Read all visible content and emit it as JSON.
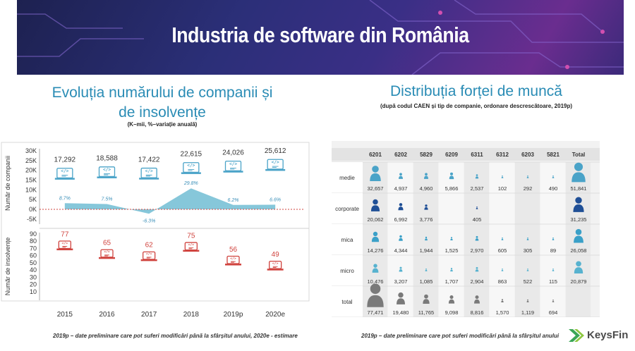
{
  "header": {
    "title": "Industria de software din România"
  },
  "left_panel": {
    "title_line1": "Evoluția numărului de companii și",
    "title_line2": "de insolvențe",
    "subtitle": "(K–mii, %–variație anuală)",
    "footnote": "2019p – date preliminare care pot suferi modificări până la sfârșitul anului, 2020e - estimare"
  },
  "right_panel": {
    "title": "Distribuția forței de muncă",
    "subtitle": "(după codul CAEN și tip de companie, ordonare descrescătoare, 2019p)",
    "footnote": "2019p – date preliminare care pot suferi modificări până la sfârșitul anului"
  },
  "logo": {
    "text": "KeysFin"
  },
  "colors": {
    "teal": "#4aa3c8",
    "area": "#7fc4d8",
    "red": "#d0443f",
    "grey": "#777777"
  },
  "chart_data": [
    {
      "type": "area",
      "categories": [
        "2015",
        "2016",
        "2017",
        "2018",
        "2019p",
        "2020e"
      ],
      "series": [
        {
          "values": [
            17292,
            18588,
            17422,
            22615,
            24026,
            25612
          ],
          "value_labels": [
            "17,292",
            "18,588",
            "17,422",
            "22,615",
            "24,026",
            "25,612"
          ]
        },
        {
          "values": [
            8.7,
            7.5,
            -6.3,
            29.8,
            6.2,
            6.6
          ],
          "value_labels": [
            "8.7%",
            "7.5%",
            "-6.3%",
            "29.8%",
            "6.2%",
            "6.6%"
          ]
        }
      ],
      "ylabel": "Număr de companii",
      "yticks": [
        "30K",
        "25K",
        "20K",
        "15K",
        "10K",
        "5K",
        "0K",
        "-5K"
      ],
      "ylim": [
        -5000,
        30000
      ],
      "icon": "laptop-code-icon"
    },
    {
      "type": "bar",
      "categories": [
        "2015",
        "2016",
        "2017",
        "2018",
        "2019p",
        "2020e"
      ],
      "values": [
        77,
        65,
        62,
        75,
        56,
        49
      ],
      "ylabel": "Număr de insolvențe",
      "yticks": [
        "90",
        "80",
        "70",
        "60",
        "50",
        "40",
        "30",
        "20",
        "10"
      ],
      "ylim": [
        0,
        90
      ],
      "icon": "laptop-code-icon"
    },
    {
      "type": "table",
      "columns": [
        "",
        "6201",
        "6202",
        "5829",
        "6209",
        "6311",
        "6312",
        "6203",
        "5821",
        "Total"
      ],
      "rows": [
        {
          "label": "medie",
          "color": "#4aa3c8",
          "values": [
            32657,
            4937,
            4960,
            5866,
            2537,
            102,
            292,
            490,
            51841
          ],
          "labels": [
            "32,657",
            "4,937",
            "4,960",
            "5,866",
            "2,537",
            "102",
            "292",
            "490",
            "51,841"
          ]
        },
        {
          "label": "corporate",
          "color": "#1f4f96",
          "values": [
            20062,
            6992,
            3776,
            null,
            405,
            null,
            null,
            null,
            31235
          ],
          "labels": [
            "20,062",
            "6,992",
            "3,776",
            "",
            "405",
            "",
            "",
            "",
            "31,235"
          ]
        },
        {
          "label": "mica",
          "color": "#3aa0c8",
          "values": [
            14276,
            4344,
            1944,
            1525,
            2970,
            605,
            305,
            89,
            26058
          ],
          "labels": [
            "14,276",
            "4,344",
            "1,944",
            "1,525",
            "2,970",
            "605",
            "305",
            "89",
            "26,058"
          ]
        },
        {
          "label": "micro",
          "color": "#57b2cf",
          "values": [
            10476,
            3207,
            1085,
            1707,
            2904,
            863,
            522,
            115,
            20879
          ],
          "labels": [
            "10,476",
            "3,207",
            "1,085",
            "1,707",
            "2,904",
            "863",
            "522",
            "115",
            "20,879"
          ]
        },
        {
          "label": "total",
          "color": "#7a7a7a",
          "values": [
            77471,
            19480,
            11765,
            9098,
            8816,
            1570,
            1119,
            694,
            null
          ],
          "labels": [
            "77,471",
            "19,480",
            "11,765",
            "9,098",
            "8,816",
            "1,570",
            "1,119",
            "694",
            ""
          ]
        }
      ]
    }
  ]
}
